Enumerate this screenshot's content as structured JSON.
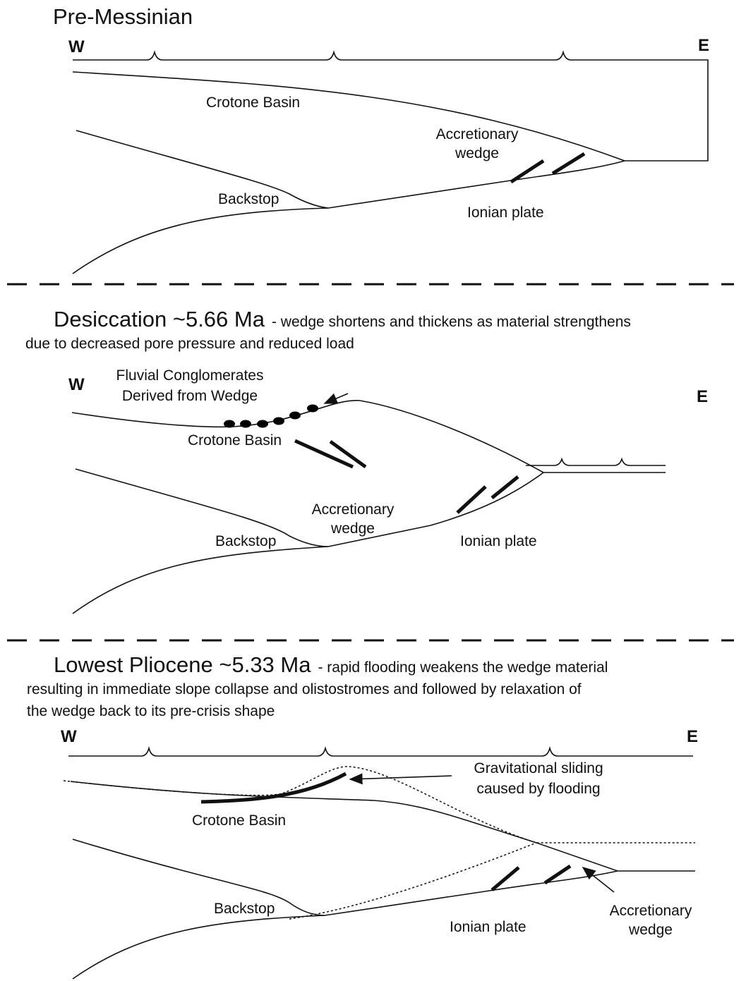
{
  "panels": [
    {
      "title": "Pre-Messinian",
      "west": "W",
      "east": "E",
      "labels": {
        "basin": "Crotone Basin",
        "wedge": [
          "Accretionary",
          "wedge"
        ],
        "backstop": "Backstop",
        "plate": "Ionian plate"
      }
    },
    {
      "title": "Desiccation ~5.66 Ma",
      "description": [
        "- wedge shortens and thickens as material strengthens",
        "due to decreased pore pressure and reduced load"
      ],
      "west": "W",
      "east": "E",
      "labels": {
        "conglomerates": [
          "Fluvial Conglomerates",
          "Derived from Wedge"
        ],
        "basin": "Crotone Basin",
        "wedge": [
          "Accretionary",
          "wedge"
        ],
        "backstop": "Backstop",
        "plate": "Ionian plate"
      }
    },
    {
      "title": "Lowest Pliocene ~5.33 Ma",
      "description": [
        "- rapid flooding weakens the wedge material",
        "resulting in immediate slope collapse and olistostromes and followed by relaxation of",
        "the wedge back to its pre-crisis shape"
      ],
      "west": "W",
      "east": "E",
      "labels": {
        "sliding": [
          "Gravitational sliding",
          "caused by flooding"
        ],
        "basin": "Crotone Basin",
        "backstop": "Backstop",
        "plate": "Ionian plate",
        "wedge": [
          "Accretionary",
          "wedge"
        ]
      }
    }
  ]
}
